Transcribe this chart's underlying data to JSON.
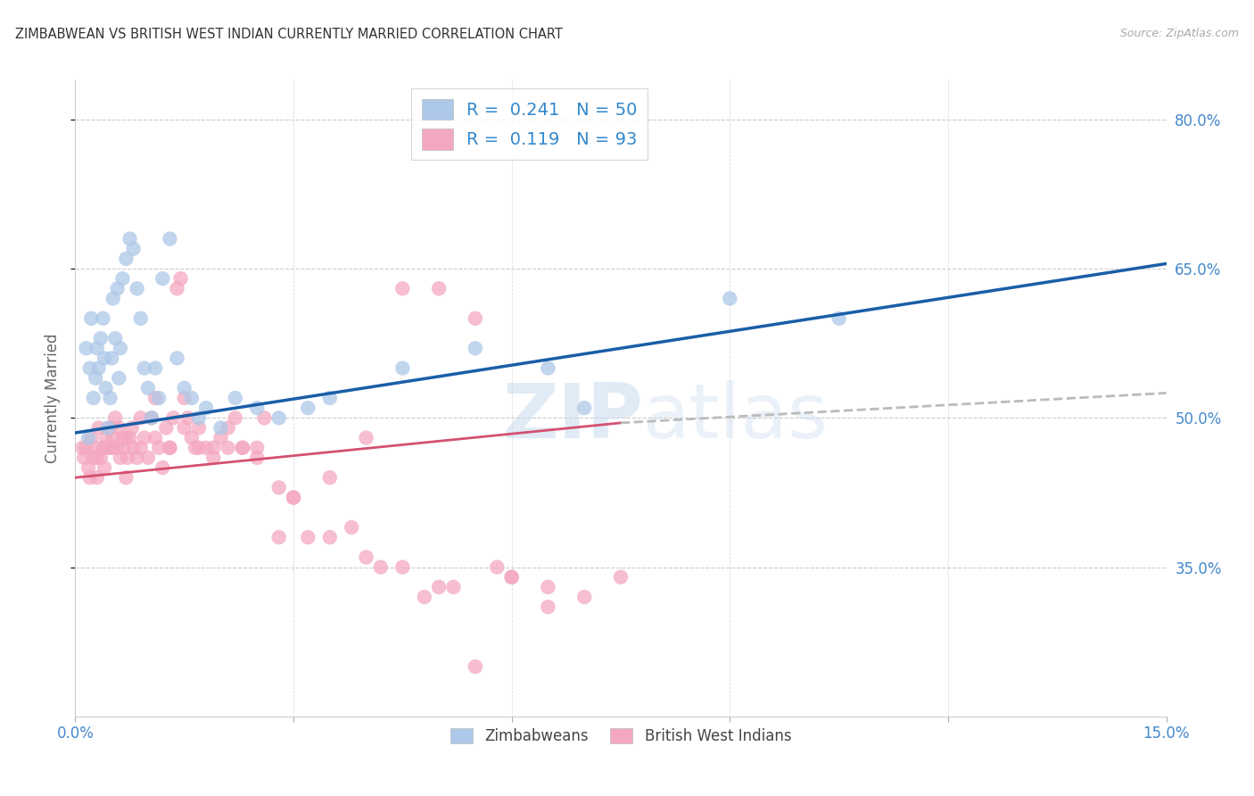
{
  "title": "ZIMBABWEAN VS BRITISH WEST INDIAN CURRENTLY MARRIED CORRELATION CHART",
  "source": "Source: ZipAtlas.com",
  "ylabel": "Currently Married",
  "xmin": 0.0,
  "xmax": 15.0,
  "ymin": 20.0,
  "ymax": 84.0,
  "yticks": [
    35.0,
    50.0,
    65.0,
    80.0
  ],
  "xticks": [
    0.0,
    3.0,
    6.0,
    9.0,
    12.0,
    15.0
  ],
  "blue_R": 0.241,
  "blue_N": 50,
  "pink_R": 0.119,
  "pink_N": 93,
  "blue_color": "#adc8e8",
  "pink_color": "#f4a8c0",
  "blue_line_color": "#1a5ea8",
  "pink_line_color": "#d45070",
  "pink_dash_color": "#bbbbbb",
  "legend_label_blue": "Zimbabweans",
  "legend_label_pink": "British West Indians",
  "watermark": "ZIPatlas",
  "blue_line_x0": 0.0,
  "blue_line_y0": 48.5,
  "blue_line_x1": 15.0,
  "blue_line_y1": 65.5,
  "pink_solid_x0": 0.0,
  "pink_solid_y0": 44.0,
  "pink_solid_x1": 7.5,
  "pink_solid_y1": 49.5,
  "pink_dash_x0": 7.5,
  "pink_dash_y0": 49.5,
  "pink_dash_x1": 15.0,
  "pink_dash_y1": 52.5,
  "blue_x": [
    0.15,
    0.18,
    0.2,
    0.22,
    0.25,
    0.28,
    0.3,
    0.32,
    0.35,
    0.38,
    0.4,
    0.42,
    0.45,
    0.48,
    0.5,
    0.52,
    0.55,
    0.58,
    0.6,
    0.62,
    0.65,
    0.7,
    0.75,
    0.8,
    0.85,
    0.9,
    0.95,
    1.0,
    1.05,
    1.1,
    1.15,
    1.2,
    1.3,
    1.4,
    1.5,
    1.6,
    1.7,
    1.8,
    2.0,
    2.2,
    2.5,
    2.8,
    3.2,
    3.5,
    4.5,
    5.5,
    6.5,
    7.0,
    9.0,
    10.5
  ],
  "blue_y": [
    57,
    48,
    55,
    60,
    52,
    54,
    57,
    55,
    58,
    60,
    56,
    53,
    49,
    52,
    56,
    62,
    58,
    63,
    54,
    57,
    64,
    66,
    68,
    67,
    63,
    60,
    55,
    53,
    50,
    55,
    52,
    64,
    68,
    56,
    53,
    52,
    50,
    51,
    49,
    52,
    51,
    50,
    51,
    52,
    55,
    57,
    55,
    51,
    62,
    60
  ],
  "pink_x": [
    0.1,
    0.12,
    0.15,
    0.18,
    0.2,
    0.22,
    0.25,
    0.28,
    0.3,
    0.32,
    0.35,
    0.38,
    0.4,
    0.42,
    0.45,
    0.48,
    0.5,
    0.52,
    0.55,
    0.58,
    0.6,
    0.62,
    0.65,
    0.68,
    0.7,
    0.72,
    0.75,
    0.78,
    0.8,
    0.85,
    0.9,
    0.95,
    1.0,
    1.05,
    1.1,
    1.15,
    1.2,
    1.25,
    1.3,
    1.35,
    1.4,
    1.45,
    1.5,
    1.55,
    1.6,
    1.65,
    1.7,
    1.8,
    1.9,
    2.0,
    2.1,
    2.2,
    2.3,
    2.5,
    2.6,
    2.8,
    3.0,
    3.2,
    3.5,
    3.8,
    4.0,
    4.2,
    4.5,
    4.8,
    5.0,
    5.2,
    5.5,
    5.8,
    6.0,
    6.5,
    7.0,
    0.3,
    0.5,
    0.7,
    0.9,
    1.1,
    1.3,
    1.5,
    1.7,
    1.9,
    2.1,
    2.3,
    2.5,
    2.8,
    3.0,
    3.5,
    4.0,
    4.5,
    5.0,
    5.5,
    6.0,
    6.5,
    7.5
  ],
  "pink_y": [
    47,
    46,
    47,
    45,
    44,
    48,
    46,
    47,
    44,
    49,
    46,
    47,
    45,
    48,
    47,
    49,
    47,
    48,
    50,
    47,
    49,
    46,
    48,
    47,
    44,
    46,
    48,
    49,
    47,
    46,
    47,
    48,
    46,
    50,
    48,
    47,
    45,
    49,
    47,
    50,
    63,
    64,
    52,
    50,
    48,
    47,
    49,
    47,
    46,
    48,
    47,
    50,
    47,
    47,
    50,
    38,
    42,
    38,
    38,
    39,
    36,
    35,
    35,
    32,
    33,
    33,
    25,
    35,
    34,
    33,
    32,
    46,
    47,
    48,
    50,
    52,
    47,
    49,
    47,
    47,
    49,
    47,
    46,
    43,
    42,
    44,
    48,
    63,
    63,
    60,
    34,
    31,
    34
  ]
}
